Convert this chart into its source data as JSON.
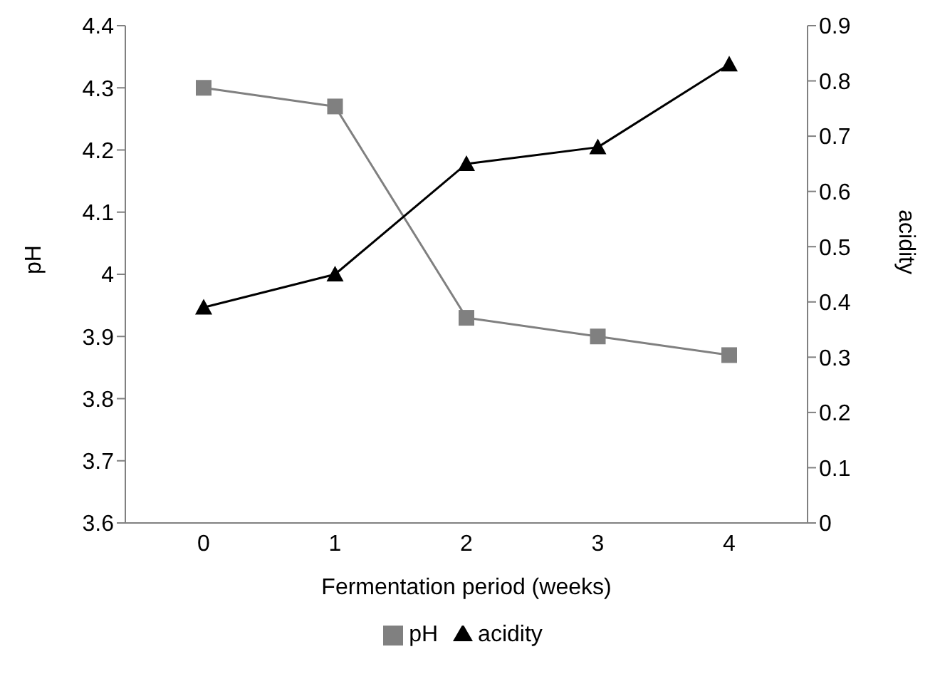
{
  "chart_data": {
    "type": "line",
    "xlabel": "Fermentation period (weeks)",
    "ylabel": "pH",
    "y2label": "acidity",
    "categories": [
      "0",
      "1",
      "2",
      "3",
      "4"
    ],
    "series": [
      {
        "name": "pH",
        "color": "#808080",
        "values": [
          4.3,
          4.27,
          3.93,
          3.9,
          3.87
        ],
        "marker": "square"
      },
      {
        "name": "acidity",
        "color": "#000000",
        "values": [
          0.39,
          0.45,
          0.65,
          0.68,
          0.83
        ],
        "axis": "y2",
        "marker": "triangle"
      }
    ],
    "ylim": [
      3.6,
      4.4
    ],
    "yticks": [
      3.6,
      3.7,
      3.8,
      3.9,
      {
        "value": 4,
        "label": "4"
      },
      4.1,
      4.2,
      4.3,
      4.4
    ],
    "y2lim": [
      0,
      0.9
    ],
    "y2ticks": [
      0,
      0.1,
      0.2,
      0.3,
      0.4,
      0.5,
      0.6,
      0.7,
      0.8,
      0.9
    ],
    "grid": false,
    "legend": "bottom"
  }
}
